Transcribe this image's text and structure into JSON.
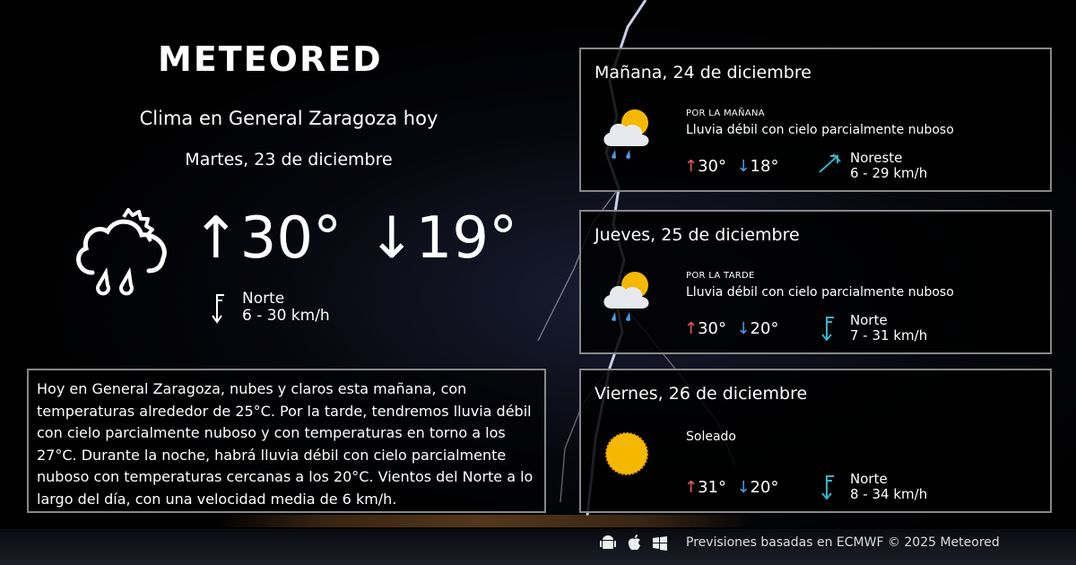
{
  "brand": "METEORED",
  "header": {
    "title": "Clima en General Zaragoza hoy",
    "date": "Martes, 23 de diciembre"
  },
  "today": {
    "icon": "cloud-sun-rain-icon",
    "max": "30°",
    "min": "19°",
    "wind_dir": "Norte",
    "wind_speed": "6 - 30 km/h"
  },
  "summary": "Hoy en General Zaragoza, nubes y claros esta mañana, con temperaturas alrededor de 25°C. Por la tarde, tendremos lluvia débil con cielo parcialmente nuboso y con temperaturas en torno a los 27°C. Durante la noche, habrá lluvia débil con cielo parcialmente nuboso  con temperaturas cercanas a los 20°C. Vientos del Norte a lo largo del día, con una velocidad media de 6 km/h.",
  "forecast": [
    {
      "title": "Mañana, 24 de diciembre",
      "period": "POR LA MAÑANA",
      "desc": "Lluvia débil con cielo parcialmente nuboso",
      "max": "30°",
      "min": "18°",
      "wind_dir": "Noreste",
      "wind_speed": "6 - 29 km/h",
      "icon": "cloud-sun-rain-icon"
    },
    {
      "title": "Jueves, 25 de diciembre",
      "period": "POR LA TARDE",
      "desc": "Lluvia débil con cielo parcialmente nuboso",
      "max": "30°",
      "min": "20°",
      "wind_dir": "Norte",
      "wind_speed": "7 - 31 km/h",
      "icon": "cloud-sun-rain-icon"
    },
    {
      "title": "Viernes, 26 de diciembre",
      "period": "",
      "desc": "Soleado",
      "max": "31°",
      "min": "20°",
      "wind_dir": "Norte",
      "wind_speed": "8 - 34 km/h",
      "icon": "sun-icon"
    }
  ],
  "footer": {
    "text": "Previsiones basadas en ECMWF © 2025 Meteored",
    "platforms": [
      "android-icon",
      "apple-icon",
      "windows-icon"
    ]
  },
  "colors": {
    "max": "#f05a5a",
    "min": "#4a9ee8",
    "wind": "#35b5c8",
    "sun": "#f5b800"
  }
}
